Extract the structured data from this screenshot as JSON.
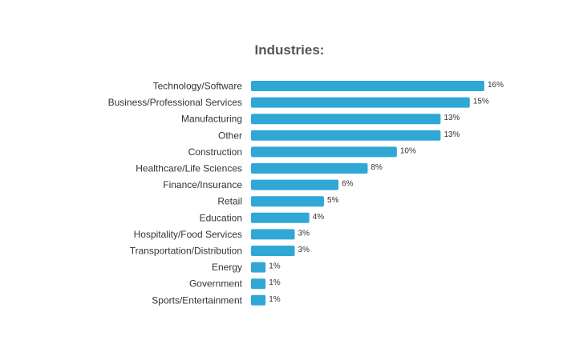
{
  "chart_data": {
    "type": "bar",
    "orientation": "horizontal",
    "title": "Industries:",
    "categories": [
      "Technology/Software",
      "Business/Professional Services",
      "Manufacturing",
      "Other",
      "Construction",
      "Healthcare/Life Sciences",
      "Finance/Insurance",
      "Retail",
      "Education",
      "Hospitality/Food Services",
      "Transportation/Distribution",
      "Energy",
      "Government",
      "Sports/Entertainment"
    ],
    "values": [
      16,
      15,
      13,
      13,
      10,
      8,
      6,
      5,
      4,
      3,
      3,
      1,
      1,
      1
    ],
    "value_labels": [
      "16%",
      "15%",
      "13%",
      "13%",
      "10%",
      "8%",
      "6%",
      "5%",
      "4%",
      "3%",
      "3%",
      "1%",
      "1%",
      "1%"
    ],
    "xlim": [
      0,
      16
    ],
    "grid": false,
    "legend": "none",
    "bar_color": "#31a7d6"
  }
}
